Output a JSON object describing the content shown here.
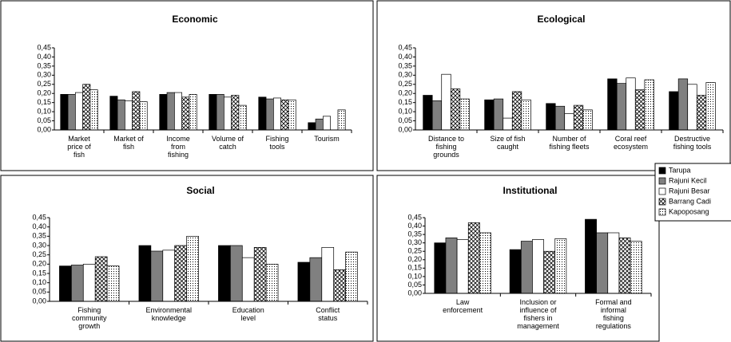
{
  "legend": [
    {
      "name": "Tarupa",
      "fill": "#000000"
    },
    {
      "name": "Rajuni Kecil",
      "fill": "#808080"
    },
    {
      "name": "Rajuni Besar",
      "fill": "#ffffff"
    },
    {
      "name": "Barrang Cadi",
      "fill": "crosshatch"
    },
    {
      "name": "Kapoposang",
      "fill": "dotted"
    }
  ],
  "chart_data": [
    {
      "type": "bar",
      "title": "Economic",
      "categories": [
        "Market price of fish",
        "Market of fish",
        "Income from fishing",
        "Volume of catch",
        "Fishing tools",
        "Tourism"
      ],
      "series": [
        {
          "values": [
            0.195,
            0.185,
            0.195,
            0.195,
            0.18,
            0.04
          ]
        },
        {
          "values": [
            0.195,
            0.165,
            0.205,
            0.195,
            0.17,
            0.06
          ]
        },
        {
          "values": [
            0.205,
            0.16,
            0.205,
            0.18,
            0.175,
            0.075
          ]
        },
        {
          "values": [
            0.25,
            0.21,
            0.18,
            0.19,
            0.165,
            0
          ]
        },
        {
          "values": [
            0.22,
            0.155,
            0.195,
            0.135,
            0.165,
            0.11
          ]
        }
      ],
      "ylim": [
        0,
        0.45
      ],
      "yticks": [
        {
          "value": 0,
          "label": "0,00"
        },
        {
          "value": 0.05,
          "label": "0,05"
        },
        {
          "value": 0.1,
          "label": "0,10"
        },
        {
          "value": 0.15,
          "label": "0,15"
        },
        {
          "value": 0.2,
          "label": "0,20"
        },
        {
          "value": 0.25,
          "label": "0,25"
        },
        {
          "value": 0.3,
          "label": "0,30"
        },
        {
          "value": 0.35,
          "label": "0,35"
        },
        {
          "value": 0.4,
          "label": "0,40"
        },
        {
          "value": 0.45,
          "label": "0,45"
        }
      ]
    },
    {
      "type": "bar",
      "title": "Ecological",
      "categories": [
        "Distance to fishing grounds",
        "Size of fish caught",
        "Number of fishing fleets",
        "Coral reef ecosystem",
        "Destructive fishing tools"
      ],
      "series": [
        {
          "values": [
            0.19,
            0.165,
            0.145,
            0.28,
            0.21
          ]
        },
        {
          "values": [
            0.16,
            0.17,
            0.13,
            0.255,
            0.28
          ]
        },
        {
          "values": [
            0.305,
            0.065,
            0.09,
            0.285,
            0.25
          ]
        },
        {
          "values": [
            0.225,
            0.21,
            0.135,
            0.22,
            0.19
          ]
        },
        {
          "values": [
            0.17,
            0.165,
            0.11,
            0.275,
            0.26
          ]
        }
      ],
      "ylim": [
        0,
        0.45
      ],
      "yticks": [
        {
          "value": 0,
          "label": "0,00"
        },
        {
          "value": 0.05,
          "label": "0,05"
        },
        {
          "value": 0.1,
          "label": "0,10"
        },
        {
          "value": 0.15,
          "label": "0,15"
        },
        {
          "value": 0.2,
          "label": "0,20"
        },
        {
          "value": 0.25,
          "label": "0,25"
        },
        {
          "value": 0.3,
          "label": "0,30"
        },
        {
          "value": 0.35,
          "label": "0,35"
        },
        {
          "value": 0.4,
          "label": "0,40"
        },
        {
          "value": 0.45,
          "label": "0,45"
        }
      ]
    },
    {
      "type": "bar",
      "title": "Social",
      "categories": [
        "Fishing community growth",
        "Environmental knowledge",
        "Education level",
        "Conflict status"
      ],
      "series": [
        {
          "values": [
            0.19,
            0.3,
            0.3,
            0.21
          ]
        },
        {
          "values": [
            0.195,
            0.27,
            0.3,
            0.235
          ]
        },
        {
          "values": [
            0.2,
            0.275,
            0.235,
            0.29
          ]
        },
        {
          "values": [
            0.24,
            0.3,
            0.29,
            0.17
          ]
        },
        {
          "values": [
            0.19,
            0.35,
            0.2,
            0.265
          ]
        }
      ],
      "ylim": [
        0,
        0.45
      ],
      "yticks": [
        {
          "value": 0,
          "label": "0,00"
        },
        {
          "value": 0.05,
          "label": "0,05"
        },
        {
          "value": 0.1,
          "label": "0,10"
        },
        {
          "value": 0.15,
          "label": "0,15"
        },
        {
          "value": 0.2,
          "label": "0,20"
        },
        {
          "value": 0.25,
          "label": "0,25"
        },
        {
          "value": 0.3,
          "label": "0,30"
        },
        {
          "value": 0.35,
          "label": "0,35"
        },
        {
          "value": 0.4,
          "label": "0,40"
        },
        {
          "value": 0.45,
          "label": "0,45"
        }
      ]
    },
    {
      "type": "bar",
      "title": "Institutional",
      "categories": [
        "Law enforcement",
        "Inclusion or influence of fishers in management",
        "Formal and informal fishing regulations"
      ],
      "series": [
        {
          "values": [
            0.3,
            0.26,
            0.44
          ]
        },
        {
          "values": [
            0.33,
            0.31,
            0.36
          ]
        },
        {
          "values": [
            0.32,
            0.32,
            0.36
          ]
        },
        {
          "values": [
            0.42,
            0.25,
            0.33
          ]
        },
        {
          "values": [
            0.36,
            0.325,
            0.31
          ]
        }
      ],
      "ylim": [
        0,
        0.45
      ],
      "yticks": [
        {
          "value": 0,
          "label": "0,00"
        },
        {
          "value": 0.05,
          "label": "0,05"
        },
        {
          "value": 0.1,
          "label": "0,10"
        },
        {
          "value": 0.15,
          "label": "0,15"
        },
        {
          "value": 0.2,
          "label": "0,20"
        },
        {
          "value": 0.25,
          "label": "0,25"
        },
        {
          "value": 0.3,
          "label": "0,30"
        },
        {
          "value": 0.35,
          "label": "0,35"
        },
        {
          "value": 0.4,
          "label": "0,40"
        },
        {
          "value": 0.45,
          "label": "0,45"
        }
      ]
    }
  ]
}
